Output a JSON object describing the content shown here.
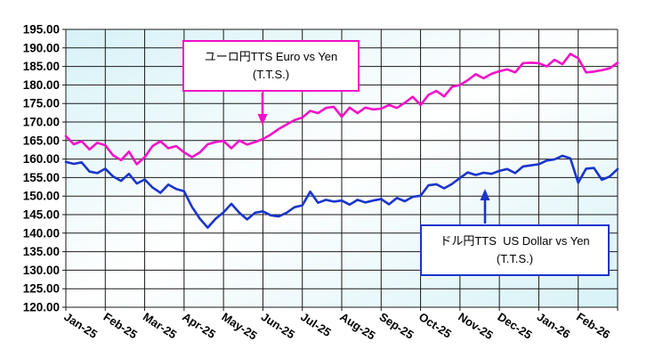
{
  "chart_data": {
    "type": "line",
    "title": "",
    "xlabel": "",
    "ylabel": "",
    "grid": true,
    "legend_position": "none (labelled callout boxes instead)",
    "ylim": [
      120,
      195
    ],
    "ytick_step": 5,
    "ytick_labels": [
      "195.00",
      "190.00",
      "185.00",
      "180.00",
      "175.00",
      "170.00",
      "165.00",
      "160.00",
      "155.00",
      "150.00",
      "145.00",
      "140.00",
      "135.00",
      "130.00",
      "125.00",
      "120.00"
    ],
    "categories": [
      "Jan-25",
      "Feb-25",
      "Mar-25",
      "Apr-25",
      "May-25",
      "Jun-25",
      "Jul-25",
      "Aug-25",
      "Sep-25",
      "Oct-25",
      "Nov-25",
      "Dec-25",
      "Jan-26",
      "Feb-26"
    ],
    "points_per_month": 5,
    "plot_bg": {
      "corner_color": "#d7f2f7",
      "center_color": "#ffffff"
    },
    "grid_color": "#1a1a1a",
    "series": [
      {
        "name": "ユーロ円TTS Euro vs Yen (T.T.S.)",
        "color": "#f30fc8",
        "values": [
          166.2,
          164.0,
          164.8,
          162.6,
          164.4,
          163.7,
          161.0,
          159.7,
          162.0,
          158.6,
          160.5,
          163.5,
          164.8,
          162.9,
          163.5,
          161.8,
          160.5,
          161.8,
          164.0,
          164.6,
          164.9,
          162.9,
          165.0,
          163.9,
          164.6,
          165.4,
          166.6,
          168.1,
          169.3,
          170.5,
          171.2,
          173.0,
          172.4,
          173.8,
          174.1,
          171.4,
          173.9,
          172.4,
          173.9,
          173.4,
          173.6,
          174.6,
          173.8,
          175.2,
          176.8,
          174.6,
          177.3,
          178.4,
          176.9,
          179.5,
          180.0,
          181.3,
          182.9,
          181.8,
          183.0,
          183.7,
          184.2,
          183.4,
          185.9,
          186.0,
          185.9,
          185.0,
          186.8,
          185.6,
          188.4,
          187.2,
          183.4,
          183.6,
          184.0,
          184.5,
          186.0
        ]
      },
      {
        "name": "ドル円TTS US Dollar vs Yen (T.T.S.)",
        "color": "#1a34cc",
        "values": [
          159.2,
          158.7,
          159.1,
          156.6,
          156.2,
          157.4,
          155.3,
          154.1,
          156.0,
          153.4,
          154.5,
          152.3,
          150.9,
          153.1,
          151.9,
          151.3,
          147.1,
          143.9,
          141.5,
          143.9,
          145.6,
          147.9,
          145.5,
          143.7,
          145.5,
          145.9,
          144.8,
          144.5,
          145.5,
          147.0,
          147.5,
          151.2,
          148.2,
          149.0,
          148.5,
          148.8,
          147.7,
          149.0,
          148.3,
          148.8,
          149.2,
          147.8,
          149.5,
          148.6,
          149.8,
          150.1,
          152.9,
          153.2,
          152.1,
          153.3,
          154.9,
          156.4,
          155.7,
          156.3,
          156.0,
          156.8,
          157.3,
          156.2,
          158.0,
          158.3,
          158.6,
          159.6,
          159.9,
          160.9,
          160.2,
          153.6,
          157.4,
          157.6,
          154.4,
          155.3,
          157.3
        ]
      }
    ]
  },
  "annotations": {
    "euro": {
      "line1": "ユーロ円TTS Euro vs Yen",
      "line2": "(T.T.S.)",
      "color": "#f30fc8"
    },
    "usd": {
      "line1": "ドル円TTS  US Dollar vs Yen",
      "line2": "(T.T.S.)",
      "color": "#1a34cc"
    }
  }
}
